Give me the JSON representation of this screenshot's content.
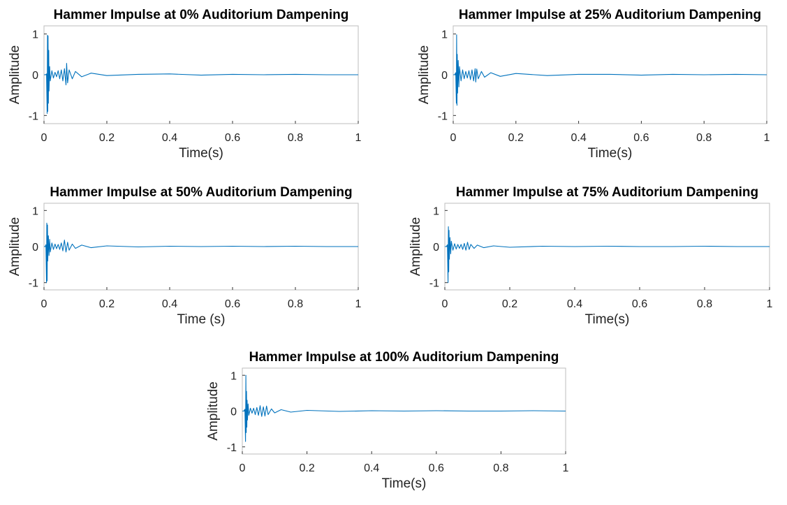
{
  "colors": {
    "line": "#0072BD",
    "axis": "#bdbdbd"
  },
  "chart_data": [
    {
      "type": "line",
      "title": "Hammer Impulse at 0% Auditorium Dampening",
      "xlabel": "Time(s)",
      "ylabel": "Amplitude",
      "xlim": [
        0,
        1
      ],
      "ylim": [
        -1.2,
        1.2
      ],
      "xticks": [
        "0",
        "0.2",
        "0.4",
        "0.6",
        "0.8",
        "1"
      ],
      "yticks": [
        "-1",
        "0",
        "1"
      ],
      "grid": false,
      "series": [
        {
          "x": [
            0,
            0.005,
            0.008,
            0.01,
            0.011,
            0.012,
            0.013,
            0.014,
            0.015,
            0.016,
            0.018,
            0.02,
            0.025,
            0.03,
            0.035,
            0.04,
            0.045,
            0.05,
            0.055,
            0.06,
            0.065,
            0.07,
            0.072,
            0.075,
            0.08,
            0.09,
            0.1,
            0.12,
            0.15,
            0.2,
            0.3,
            0.4,
            0.5,
            0.6,
            0.7,
            0.8,
            0.9,
            1.0
          ],
          "y": [
            0,
            0,
            0.02,
            -0.95,
            0.97,
            -0.9,
            0.95,
            -0.7,
            0.6,
            -0.4,
            0.2,
            -0.15,
            0.1,
            -0.08,
            0.06,
            -0.05,
            0.1,
            -0.1,
            0.12,
            -0.15,
            0.15,
            -0.25,
            0.28,
            -0.2,
            0.12,
            -0.1,
            0.08,
            -0.05,
            0.04,
            -0.02,
            0.01,
            0.02,
            -0.01,
            0.01,
            0,
            0.01,
            0,
            0
          ]
        }
      ]
    },
    {
      "type": "line",
      "title": "Hammer Impulse at 25% Auditorium Dampening",
      "xlabel": "Time(s)",
      "ylabel": "Amplitude",
      "xlim": [
        0,
        1
      ],
      "ylim": [
        -1.2,
        1.2
      ],
      "xticks": [
        "0",
        "0.2",
        "0.4",
        "0.6",
        "0.8",
        "1"
      ],
      "yticks": [
        "-1",
        "0",
        "1"
      ],
      "grid": false,
      "series": [
        {
          "x": [
            0,
            0.005,
            0.008,
            0.01,
            0.011,
            0.012,
            0.013,
            0.014,
            0.016,
            0.018,
            0.02,
            0.025,
            0.03,
            0.035,
            0.04,
            0.045,
            0.05,
            0.055,
            0.06,
            0.065,
            0.07,
            0.072,
            0.075,
            0.08,
            0.09,
            0.1,
            0.12,
            0.15,
            0.2,
            0.3,
            0.4,
            0.5,
            0.6,
            0.7,
            0.8,
            0.9,
            1.0
          ],
          "y": [
            0,
            0,
            0.05,
            -0.7,
            0.98,
            -0.75,
            0.5,
            -0.45,
            0.35,
            -0.3,
            0.2,
            -0.15,
            0.12,
            -0.1,
            0.08,
            -0.08,
            0.1,
            -0.12,
            0.12,
            -0.15,
            0.15,
            -0.18,
            0.14,
            -0.1,
            0.08,
            -0.06,
            0.05,
            -0.04,
            0.03,
            -0.02,
            0.01,
            0.01,
            -0.01,
            0.01,
            0,
            0.01,
            0
          ]
        }
      ]
    },
    {
      "type": "line",
      "title": "Hammer Impulse at 50% Auditorium Dampening",
      "xlabel": "Time (s)",
      "ylabel": "Amplitude",
      "xlim": [
        0,
        1
      ],
      "ylim": [
        -1.2,
        1.2
      ],
      "xticks": [
        "0",
        "0.2",
        "0.4",
        "0.6",
        "0.8",
        "1"
      ],
      "yticks": [
        "-1",
        "0",
        "1"
      ],
      "grid": false,
      "series": [
        {
          "x": [
            0,
            0.004,
            0.006,
            0.008,
            0.009,
            0.01,
            0.011,
            0.012,
            0.014,
            0.016,
            0.018,
            0.02,
            0.025,
            0.03,
            0.035,
            0.04,
            0.045,
            0.05,
            0.055,
            0.06,
            0.065,
            0.07,
            0.075,
            0.08,
            0.09,
            0.1,
            0.12,
            0.15,
            0.2,
            0.3,
            0.4,
            0.5,
            0.6,
            0.7,
            0.8,
            0.9,
            1.0
          ],
          "y": [
            0,
            0,
            0.05,
            -1.0,
            0.65,
            -0.95,
            0.6,
            -0.4,
            0.3,
            -0.25,
            0.2,
            -0.15,
            0.1,
            -0.08,
            0.07,
            -0.06,
            0.06,
            -0.08,
            0.1,
            -0.12,
            0.18,
            -0.15,
            0.12,
            -0.1,
            0.07,
            -0.05,
            0.04,
            -0.03,
            0.02,
            -0.01,
            0.01,
            0,
            0.01,
            0,
            0.01,
            0,
            0
          ]
        }
      ]
    },
    {
      "type": "line",
      "title": "Hammer Impulse at 75% Auditorium Dampening",
      "xlabel": "Time(s)",
      "ylabel": "Amplitude",
      "xlim": [
        0,
        1
      ],
      "ylim": [
        -1.2,
        1.2
      ],
      "xticks": [
        "0",
        "0.2",
        "0.4",
        "0.6",
        "0.8",
        "1"
      ],
      "yticks": [
        "-1",
        "0",
        "1"
      ],
      "grid": false,
      "series": [
        {
          "x": [
            0,
            0.005,
            0.008,
            0.01,
            0.011,
            0.012,
            0.013,
            0.014,
            0.016,
            0.018,
            0.02,
            0.025,
            0.03,
            0.035,
            0.04,
            0.045,
            0.05,
            0.055,
            0.06,
            0.065,
            0.07,
            0.075,
            0.08,
            0.09,
            0.1,
            0.12,
            0.15,
            0.2,
            0.3,
            0.4,
            0.5,
            0.6,
            0.7,
            0.8,
            0.9,
            1.0
          ],
          "y": [
            0,
            0,
            0.05,
            -1.0,
            0.55,
            -0.7,
            0.45,
            -0.35,
            0.25,
            -0.2,
            0.15,
            -0.1,
            0.08,
            -0.07,
            0.06,
            -0.05,
            0.06,
            -0.08,
            0.09,
            -0.1,
            0.12,
            -0.08,
            0.06,
            -0.05,
            0.04,
            -0.03,
            0.02,
            -0.02,
            0.01,
            0,
            0.01,
            0,
            0,
            0.01,
            0,
            0
          ]
        }
      ]
    },
    {
      "type": "line",
      "title": "Hammer Impulse at 100% Auditorium Dampening",
      "xlabel": "Time(s)",
      "ylabel": "Amplitude",
      "xlim": [
        0,
        1
      ],
      "ylim": [
        -1.2,
        1.2
      ],
      "xticks": [
        "0",
        "0.2",
        "0.4",
        "0.6",
        "0.8",
        "1"
      ],
      "yticks": [
        "-1",
        "0",
        "1"
      ],
      "grid": false,
      "series": [
        {
          "x": [
            0,
            0.005,
            0.008,
            0.01,
            0.011,
            0.012,
            0.013,
            0.014,
            0.015,
            0.016,
            0.018,
            0.02,
            0.025,
            0.03,
            0.035,
            0.04,
            0.045,
            0.05,
            0.055,
            0.06,
            0.065,
            0.07,
            0.075,
            0.08,
            0.09,
            0.1,
            0.12,
            0.15,
            0.2,
            0.3,
            0.4,
            0.5,
            0.6,
            0.7,
            0.8,
            0.9,
            1.0
          ],
          "y": [
            0,
            0,
            0.05,
            -0.85,
            1.0,
            -0.6,
            0.55,
            -0.45,
            0.3,
            -0.25,
            0.2,
            -0.12,
            0.08,
            -0.06,
            0.08,
            -0.1,
            0.1,
            -0.12,
            0.15,
            -0.15,
            0.12,
            -0.14,
            0.14,
            -0.1,
            0.06,
            -0.05,
            0.04,
            -0.03,
            0.02,
            -0.01,
            0.01,
            0,
            0.01,
            0,
            0,
            0.01,
            0
          ]
        }
      ]
    }
  ]
}
